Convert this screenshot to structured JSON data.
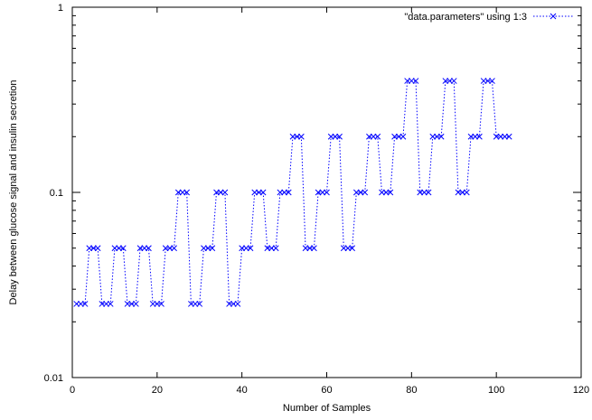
{
  "chart_data": {
    "type": "scatter",
    "xlabel": "Number of Samples",
    "ylabel": "Delay between glucose signal and insulin secretion",
    "xlim": [
      0,
      120
    ],
    "ylim": [
      0.01,
      1
    ],
    "yscale": "log",
    "xticks": [
      0,
      20,
      40,
      60,
      80,
      100,
      120
    ],
    "yticks": [
      0.01,
      0.1,
      1
    ],
    "xtick_labels": [
      "0",
      "20",
      "40",
      "60",
      "80",
      "100",
      "120"
    ],
    "ytick_labels": [
      "0.01",
      "0.1",
      "1"
    ],
    "legend_position": "top-right",
    "series": [
      {
        "name": "\"data.parameters\" using 1:3",
        "color": "#0000ff",
        "marker": "x",
        "line": "dotted",
        "points": [
          [
            1,
            0.025
          ],
          [
            2,
            0.025
          ],
          [
            3,
            0.025
          ],
          [
            4,
            0.05
          ],
          [
            5,
            0.05
          ],
          [
            6,
            0.05
          ],
          [
            7,
            0.025
          ],
          [
            8,
            0.025
          ],
          [
            9,
            0.025
          ],
          [
            10,
            0.05
          ],
          [
            11,
            0.05
          ],
          [
            12,
            0.05
          ],
          [
            13,
            0.025
          ],
          [
            14,
            0.025
          ],
          [
            15,
            0.025
          ],
          [
            16,
            0.05
          ],
          [
            17,
            0.05
          ],
          [
            18,
            0.05
          ],
          [
            19,
            0.025
          ],
          [
            20,
            0.025
          ],
          [
            21,
            0.025
          ],
          [
            22,
            0.05
          ],
          [
            23,
            0.05
          ],
          [
            24,
            0.05
          ],
          [
            25,
            0.1
          ],
          [
            26,
            0.1
          ],
          [
            27,
            0.1
          ],
          [
            28,
            0.025
          ],
          [
            29,
            0.025
          ],
          [
            30,
            0.025
          ],
          [
            31,
            0.05
          ],
          [
            32,
            0.05
          ],
          [
            33,
            0.05
          ],
          [
            34,
            0.1
          ],
          [
            35,
            0.1
          ],
          [
            36,
            0.1
          ],
          [
            37,
            0.025
          ],
          [
            38,
            0.025
          ],
          [
            39,
            0.025
          ],
          [
            40,
            0.05
          ],
          [
            41,
            0.05
          ],
          [
            42,
            0.05
          ],
          [
            43,
            0.1
          ],
          [
            44,
            0.1
          ],
          [
            45,
            0.1
          ],
          [
            46,
            0.05
          ],
          [
            47,
            0.05
          ],
          [
            48,
            0.05
          ],
          [
            49,
            0.1
          ],
          [
            50,
            0.1
          ],
          [
            51,
            0.1
          ],
          [
            52,
            0.2
          ],
          [
            53,
            0.2
          ],
          [
            54,
            0.2
          ],
          [
            55,
            0.05
          ],
          [
            56,
            0.05
          ],
          [
            57,
            0.05
          ],
          [
            58,
            0.1
          ],
          [
            59,
            0.1
          ],
          [
            60,
            0.1
          ],
          [
            61,
            0.2
          ],
          [
            62,
            0.2
          ],
          [
            63,
            0.2
          ],
          [
            64,
            0.05
          ],
          [
            65,
            0.05
          ],
          [
            66,
            0.05
          ],
          [
            67,
            0.1
          ],
          [
            68,
            0.1
          ],
          [
            69,
            0.1
          ],
          [
            70,
            0.2
          ],
          [
            71,
            0.2
          ],
          [
            72,
            0.2
          ],
          [
            73,
            0.1
          ],
          [
            74,
            0.1
          ],
          [
            75,
            0.1
          ],
          [
            76,
            0.2
          ],
          [
            77,
            0.2
          ],
          [
            78,
            0.2
          ],
          [
            79,
            0.4
          ],
          [
            80,
            0.4
          ],
          [
            81,
            0.4
          ],
          [
            82,
            0.1
          ],
          [
            83,
            0.1
          ],
          [
            84,
            0.1
          ],
          [
            85,
            0.2
          ],
          [
            86,
            0.2
          ],
          [
            87,
            0.2
          ],
          [
            88,
            0.4
          ],
          [
            89,
            0.4
          ],
          [
            90,
            0.4
          ],
          [
            91,
            0.1
          ],
          [
            92,
            0.1
          ],
          [
            93,
            0.1
          ],
          [
            94,
            0.2
          ],
          [
            95,
            0.2
          ],
          [
            96,
            0.2
          ],
          [
            97,
            0.4
          ],
          [
            98,
            0.4
          ],
          [
            99,
            0.4
          ],
          [
            100,
            0.2
          ],
          [
            101,
            0.2
          ],
          [
            102,
            0.2
          ],
          [
            103,
            0.2
          ]
        ]
      }
    ]
  }
}
